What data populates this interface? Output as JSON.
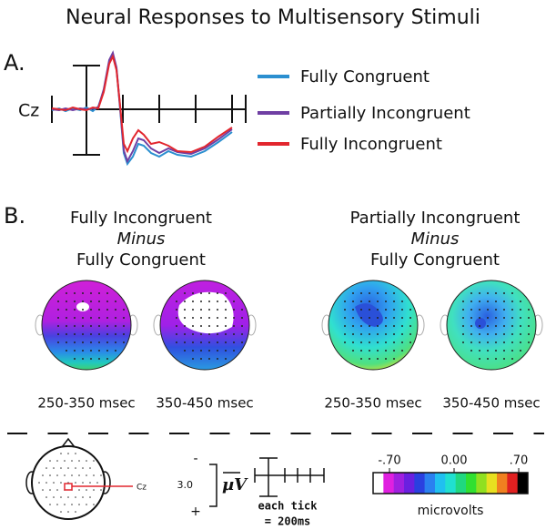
{
  "title": "Neural Responses to Multisensory Stimuli",
  "panel_a": {
    "label": "A.",
    "channel": "Cz",
    "legend": [
      {
        "name": "Fully Congruent",
        "color": "#2b8fd0"
      },
      {
        "name": "Partially Incongruent",
        "color": "#6f3fa3"
      },
      {
        "name": "Fully Incongruent",
        "color": "#e2262e"
      }
    ]
  },
  "panel_b": {
    "label": "B.",
    "comparisons": [
      {
        "title": [
          "Fully Incongruent",
          "Minus",
          "Fully Congruent"
        ],
        "maps": [
          "250-350 msec",
          "350-450 msec"
        ]
      },
      {
        "title": [
          "Partially Incongruent",
          "Minus",
          "Fully Congruent"
        ],
        "maps": [
          "250-350 msec",
          "350-450 msec"
        ]
      }
    ]
  },
  "key": {
    "electrode": "Cz",
    "scale_minus": "-",
    "scale_plus": "+",
    "scale_value": "3.0",
    "scale_unit": "µV",
    "tick_note": [
      "each tick",
      "= 200ms"
    ],
    "colorbar": {
      "ticks": [
        {
          "value": -0.7,
          "label": "-.70"
        },
        {
          "value": 0,
          "label": "0.00"
        },
        {
          "value": 0.7,
          "label": ".70"
        }
      ],
      "label": "microvolts"
    }
  }
}
